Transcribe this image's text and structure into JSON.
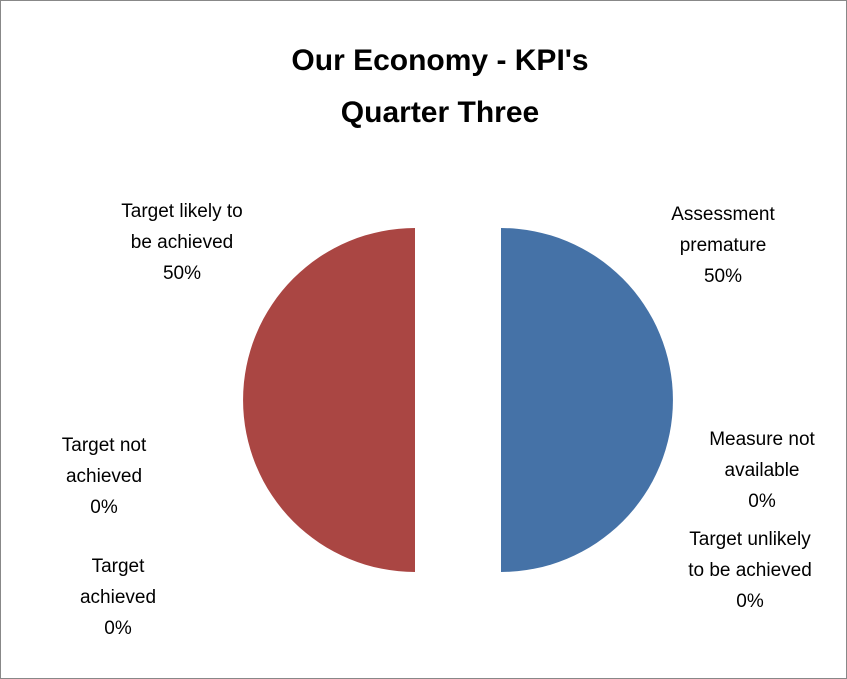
{
  "chart_data": {
    "type": "pie",
    "title": [
      "Our Economy - KPI's",
      "Quarter  Three"
    ],
    "categories": [
      "Assessment premature",
      "Measure not available",
      "Target unlikely to be achieved",
      "Target achieved",
      "Target not achieved",
      "Target likely to be achieved"
    ],
    "values": [
      50,
      0,
      0,
      0,
      0,
      50
    ],
    "value_labels": [
      "50%",
      "0%",
      "0%",
      "0%",
      "0%",
      "50%"
    ],
    "colors": [
      "#4572a7",
      "#89a54e",
      "#80699b",
      "#3d96ae",
      "#db843d",
      "#aa4643"
    ]
  }
}
